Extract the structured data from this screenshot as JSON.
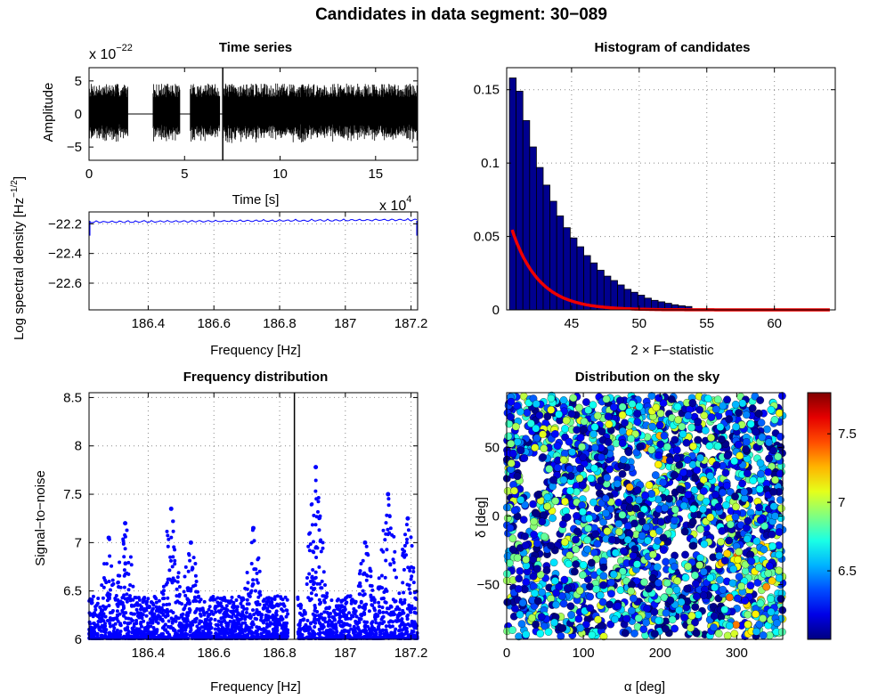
{
  "figure": {
    "title": "Candidates in data segment: 30−089"
  },
  "colors": {
    "blue": "#0000ff",
    "navy": "#00008f",
    "red": "#ee0000"
  },
  "chart_data": [
    {
      "id": "timeseries",
      "type": "line",
      "title": "Time series",
      "xlabel": "Time [s]",
      "ylabel": "Amplitude",
      "exponent_label": {
        "base": "x 10",
        "exp": "−22"
      },
      "xlim": [
        0,
        17.2
      ],
      "ylim": [
        -7,
        7
      ],
      "xticks": [
        0,
        5,
        10,
        15
      ],
      "yticks": [
        -5,
        0,
        5
      ],
      "marker_x": 7.0,
      "segments": [
        [
          0,
          2.05
        ],
        [
          3.35,
          4.75
        ],
        [
          5.3,
          6.85
        ],
        [
          7.0,
          17.2
        ]
      ],
      "envelope": 4.6
    },
    {
      "id": "psd",
      "type": "line",
      "title": "",
      "xlabel": "Frequency [Hz]",
      "ylabel": "Log spectral density [Hz⁻¹ᐟ²]",
      "exponent_label": {
        "base": "x 10",
        "exp": "4"
      },
      "xlim": [
        186.22,
        187.22
      ],
      "ylim": [
        -22.78,
        -22.12
      ],
      "xticks": [
        186.4,
        186.6,
        186.8,
        187.0,
        187.2
      ],
      "xticklabels": [
        "186.4",
        "186.6",
        "186.8",
        "187",
        "187.2"
      ],
      "yticks": [
        -22.2,
        -22.4,
        -22.6
      ],
      "yticklabels": [
        "−22.2",
        "−22.4",
        "−22.6"
      ],
      "level": -22.18
    },
    {
      "id": "histogram",
      "type": "bar",
      "title": "Histogram of candidates",
      "xlabel": "2 × F−statistic",
      "ylabel": "",
      "xlim": [
        40.2,
        64.5
      ],
      "ylim": [
        0,
        0.165
      ],
      "xticks": [
        45,
        50,
        55,
        60
      ],
      "yticks": [
        0,
        0.05,
        0.1,
        0.15
      ],
      "yticklabels": [
        "0",
        "0.05",
        "0.1",
        "0.15"
      ],
      "bin_width": 0.5,
      "x_start": 40.4,
      "values": [
        0.158,
        0.149,
        0.129,
        0.111,
        0.097,
        0.085,
        0.074,
        0.064,
        0.056,
        0.049,
        0.043,
        0.037,
        0.032,
        0.027,
        0.023,
        0.02,
        0.017,
        0.014,
        0.012,
        0.01,
        0.008,
        0.0065,
        0.0055,
        0.0045,
        0.0035,
        0.0028,
        0.0023
      ],
      "fit_curve": {
        "label": "fit",
        "x0": 40.2,
        "decay": 0.5
      }
    },
    {
      "id": "freqdist",
      "type": "scatter",
      "title": "Frequency distribution",
      "xlabel": "Frequency [Hz]",
      "ylabel": "Signal−to−noise",
      "xlim": [
        186.22,
        187.22
      ],
      "ylim": [
        6,
        8.55
      ],
      "xticks": [
        186.4,
        186.6,
        186.8,
        187.0,
        187.2
      ],
      "xticklabels": [
        "186.4",
        "186.6",
        "186.8",
        "187",
        "187.2"
      ],
      "yticks": [
        6,
        6.5,
        7,
        7.5,
        8,
        8.5
      ],
      "yticklabels": [
        "6",
        "6.5",
        "7",
        "7.5",
        "8",
        "8.5"
      ],
      "marker_x": 186.845,
      "gap": [
        186.825,
        186.855
      ],
      "peaks": [
        {
          "f": 186.28,
          "snr": 7.05
        },
        {
          "f": 186.33,
          "snr": 7.2
        },
        {
          "f": 186.47,
          "snr": 7.35
        },
        {
          "f": 186.53,
          "snr": 7.0
        },
        {
          "f": 186.72,
          "snr": 7.15
        },
        {
          "f": 186.91,
          "snr": 7.78
        },
        {
          "f": 187.06,
          "snr": 7.0
        },
        {
          "f": 187.13,
          "snr": 7.5
        },
        {
          "f": 187.19,
          "snr": 7.25
        }
      ]
    },
    {
      "id": "sky",
      "type": "scatter",
      "title": "Distribution on the sky",
      "xlabel": "α [deg]",
      "ylabel": "δ [deg]",
      "xlim": [
        0,
        360
      ],
      "ylim": [
        -90,
        90
      ],
      "xticks": [
        0,
        100,
        200,
        300
      ],
      "yticks": [
        -50,
        0,
        50
      ],
      "yticklabels": [
        "−50",
        "0",
        "50"
      ],
      "colorbar": {
        "ticks": [
          6.5,
          7,
          7.5
        ],
        "range": [
          6.0,
          7.8
        ]
      }
    }
  ]
}
